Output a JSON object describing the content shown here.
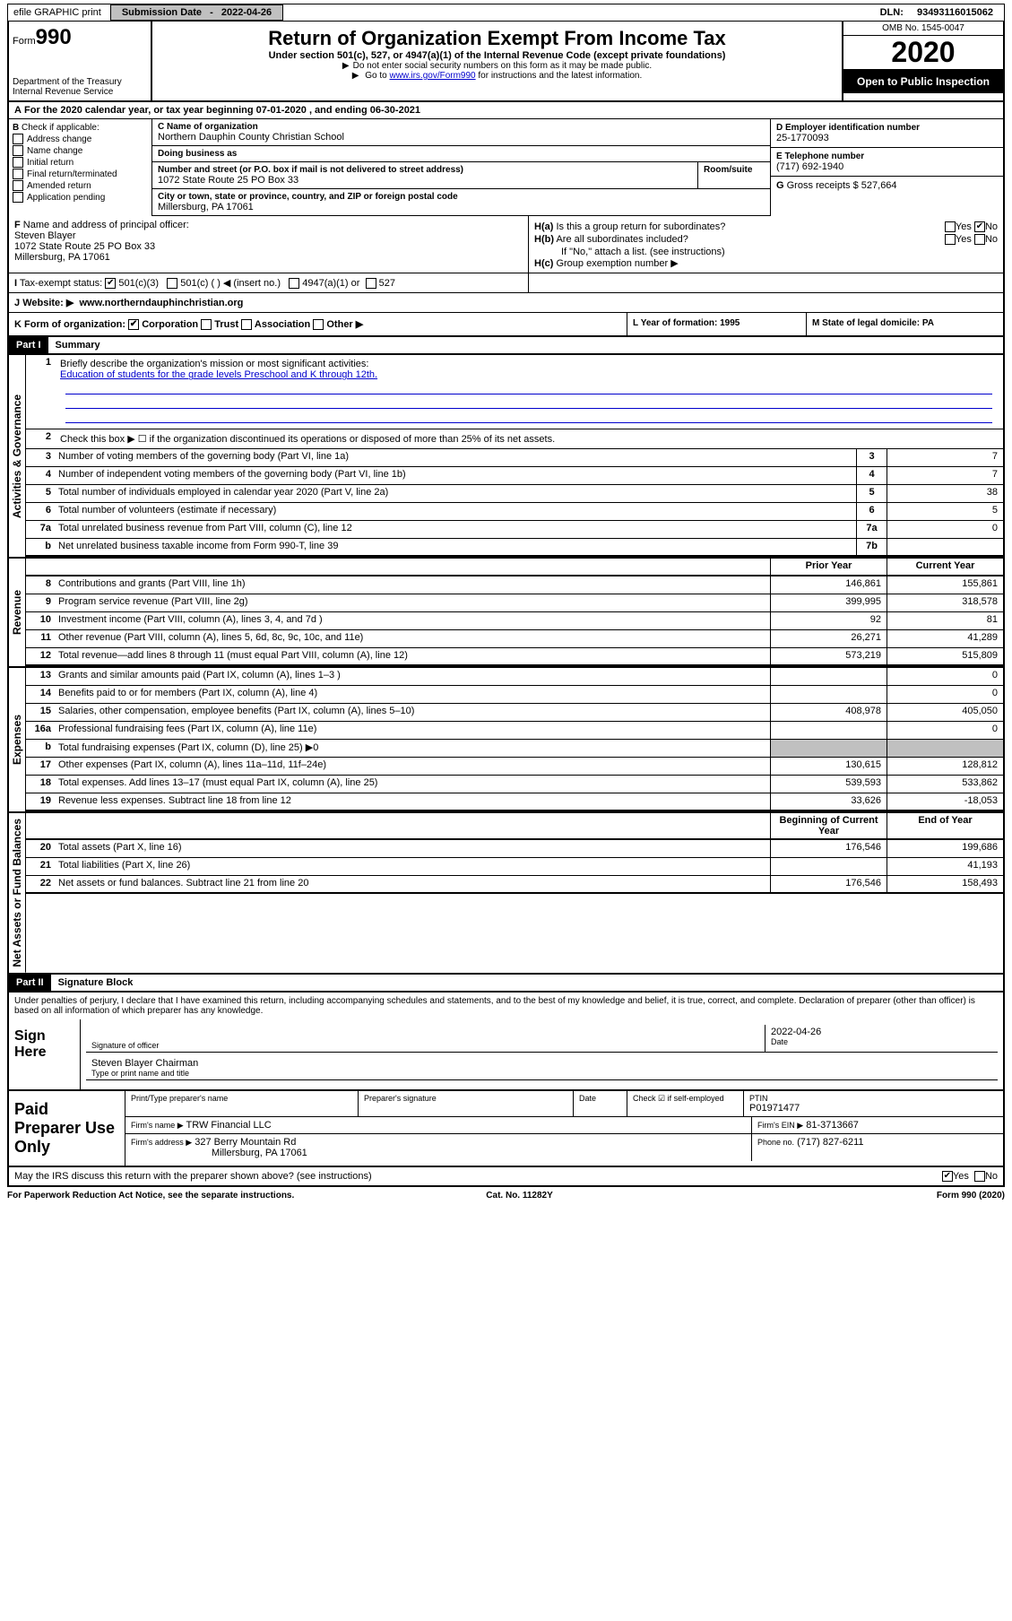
{
  "top": {
    "efile": "efile GRAPHIC print",
    "submission_label": "Submission Date",
    "submission_date": "2022-04-26",
    "dln_label": "DLN:",
    "dln": "93493116015062"
  },
  "header": {
    "form_word": "Form",
    "form_num": "990",
    "dept": "Department of the Treasury Internal Revenue Service",
    "title": "Return of Organization Exempt From Income Tax",
    "subtitle": "Under section 501(c), 527, or 4947(a)(1) of the Internal Revenue Code (except private foundations)",
    "note1": "Do not enter social security numbers on this form as it may be made public.",
    "note2_pre": "Go to ",
    "note2_link": "www.irs.gov/Form990",
    "note2_post": " for instructions and the latest information.",
    "omb": "OMB No. 1545-0047",
    "year": "2020",
    "public": "Open to Public Inspection"
  },
  "A": {
    "text": "For the 2020 calendar year, or tax year beginning 07-01-2020    , and ending 06-30-2021"
  },
  "B": {
    "label": "Check if applicable:",
    "items": [
      "Address change",
      "Name change",
      "Initial return",
      "Final return/terminated",
      "Amended return",
      "Application pending"
    ]
  },
  "C": {
    "name_label": "Name of organization",
    "name": "Northern Dauphin County Christian School",
    "dba_label": "Doing business as",
    "dba": "",
    "addr_label": "Number and street (or P.O. box if mail is not delivered to street address)",
    "addr": "1072 State Route 25 PO Box 33",
    "room_label": "Room/suite",
    "city_label": "City or town, state or province, country, and ZIP or foreign postal code",
    "city": "Millersburg, PA  17061"
  },
  "D": {
    "label": "Employer identification number",
    "value": "25-1770093"
  },
  "E": {
    "label": "Telephone number",
    "value": "(717) 692-1940"
  },
  "G": {
    "label": "Gross receipts $",
    "value": "527,664"
  },
  "F": {
    "label": "Name and address of principal officer:",
    "name": "Steven Blayer",
    "addr": "1072 State Route 25 PO Box 33",
    "city": "Millersburg, PA  17061"
  },
  "H": {
    "a": "Is this a group return for subordinates?",
    "a_no": true,
    "b": "Are all subordinates included?",
    "b_note": "If \"No,\" attach a list. (see instructions)",
    "c": "Group exemption number ▶"
  },
  "I": {
    "label": "Tax-exempt status:",
    "opt1": "501(c)(3)",
    "opt2": "501(c) (  ) ◀ (insert no.)",
    "opt3": "4947(a)(1) or",
    "opt4": "527",
    "checked": true
  },
  "J": {
    "label": "Website: ▶",
    "value": "www.northerndauphinchristian.org"
  },
  "K": {
    "label": "Form of organization:",
    "opts": [
      "Corporation",
      "Trust",
      "Association",
      "Other ▶"
    ],
    "checked_idx": 0
  },
  "L": {
    "label": "Year of formation:",
    "value": "1995"
  },
  "M": {
    "label": "State of legal domicile:",
    "value": "PA"
  },
  "part1": {
    "label": "Part I",
    "title": "Summary",
    "side_activities": "Activities & Governance",
    "side_revenue": "Revenue",
    "side_expenses": "Expenses",
    "side_netassets": "Net Assets or Fund Balances",
    "line1": "Briefly describe the organization's mission or most significant activities:",
    "line1_text": "Education of students for the grade levels Preschool and K through 12th.",
    "line2": "Check this box ▶ ☐  if the organization discontinued its operations or disposed of more than 25% of its net assets.",
    "rows_governance": [
      {
        "n": "3",
        "d": "Number of voting members of the governing body (Part VI, line 1a)",
        "box": "3",
        "v": "7"
      },
      {
        "n": "4",
        "d": "Number of independent voting members of the governing body (Part VI, line 1b)",
        "box": "4",
        "v": "7"
      },
      {
        "n": "5",
        "d": "Total number of individuals employed in calendar year 2020 (Part V, line 2a)",
        "box": "5",
        "v": "38"
      },
      {
        "n": "6",
        "d": "Total number of volunteers (estimate if necessary)",
        "box": "6",
        "v": "5"
      },
      {
        "n": "7a",
        "d": "Total unrelated business revenue from Part VIII, column (C), line 12",
        "box": "7a",
        "v": "0"
      },
      {
        "n": "b",
        "d": "Net unrelated business taxable income from Form 990-T, line 39",
        "box": "7b",
        "v": ""
      }
    ],
    "col_prior": "Prior Year",
    "col_current": "Current Year",
    "rows_revenue": [
      {
        "n": "8",
        "d": "Contributions and grants (Part VIII, line 1h)",
        "p": "146,861",
        "c": "155,861"
      },
      {
        "n": "9",
        "d": "Program service revenue (Part VIII, line 2g)",
        "p": "399,995",
        "c": "318,578"
      },
      {
        "n": "10",
        "d": "Investment income (Part VIII, column (A), lines 3, 4, and 7d )",
        "p": "92",
        "c": "81"
      },
      {
        "n": "11",
        "d": "Other revenue (Part VIII, column (A), lines 5, 6d, 8c, 9c, 10c, and 11e)",
        "p": "26,271",
        "c": "41,289"
      },
      {
        "n": "12",
        "d": "Total revenue—add lines 8 through 11 (must equal Part VIII, column (A), line 12)",
        "p": "573,219",
        "c": "515,809"
      }
    ],
    "rows_expenses": [
      {
        "n": "13",
        "d": "Grants and similar amounts paid (Part IX, column (A), lines 1–3 )",
        "p": "",
        "c": "0"
      },
      {
        "n": "14",
        "d": "Benefits paid to or for members (Part IX, column (A), line 4)",
        "p": "",
        "c": "0"
      },
      {
        "n": "15",
        "d": "Salaries, other compensation, employee benefits (Part IX, column (A), lines 5–10)",
        "p": "408,978",
        "c": "405,050"
      },
      {
        "n": "16a",
        "d": "Professional fundraising fees (Part IX, column (A), line 11e)",
        "p": "",
        "c": "0"
      },
      {
        "n": "b",
        "d": "Total fundraising expenses (Part IX, column (D), line 25) ▶0",
        "p": "shaded",
        "c": "shaded"
      },
      {
        "n": "17",
        "d": "Other expenses (Part IX, column (A), lines 11a–11d, 11f–24e)",
        "p": "130,615",
        "c": "128,812"
      },
      {
        "n": "18",
        "d": "Total expenses. Add lines 13–17 (must equal Part IX, column (A), line 25)",
        "p": "539,593",
        "c": "533,862"
      },
      {
        "n": "19",
        "d": "Revenue less expenses. Subtract line 18 from line 12",
        "p": "33,626",
        "c": "-18,053"
      }
    ],
    "col_begin": "Beginning of Current Year",
    "col_end": "End of Year",
    "rows_netassets": [
      {
        "n": "20",
        "d": "Total assets (Part X, line 16)",
        "p": "176,546",
        "c": "199,686"
      },
      {
        "n": "21",
        "d": "Total liabilities (Part X, line 26)",
        "p": "",
        "c": "41,193"
      },
      {
        "n": "22",
        "d": "Net assets or fund balances. Subtract line 21 from line 20",
        "p": "176,546",
        "c": "158,493"
      }
    ]
  },
  "part2": {
    "label": "Part II",
    "title": "Signature Block",
    "declaration": "Under penalties of perjury, I declare that I have examined this return, including accompanying schedules and statements, and to the best of my knowledge and belief, it is true, correct, and complete. Declaration of preparer (other than officer) is based on all information of which preparer has any knowledge.",
    "sign_here": "Sign Here",
    "sig_officer": "Signature of officer",
    "sig_date": "Date",
    "sig_date_val": "2022-04-26",
    "name_title": "Steven Blayer  Chairman",
    "name_title_label": "Type or print name and title",
    "paid_prep": "Paid Preparer Use Only",
    "prep_name_label": "Print/Type preparer's name",
    "prep_sig_label": "Preparer's signature",
    "prep_date_label": "Date",
    "prep_check_label": "Check ☑ if self-employed",
    "ptin_label": "PTIN",
    "ptin": "P01971477",
    "firm_name_label": "Firm's name  ▶",
    "firm_name": "TRW Financial LLC",
    "firm_ein_label": "Firm's EIN ▶",
    "firm_ein": "81-3713667",
    "firm_addr_label": "Firm's address ▶",
    "firm_addr": "327 Berry Mountain Rd",
    "firm_city": "Millersburg, PA  17061",
    "phone_label": "Phone no.",
    "phone": "(717) 827-6211",
    "discuss": "May the IRS discuss this return with the preparer shown above? (see instructions)",
    "discuss_yes": true
  },
  "footer": {
    "paperwork": "For Paperwork Reduction Act Notice, see the separate instructions.",
    "cat": "Cat. No. 11282Y",
    "form": "Form 990 (2020)"
  }
}
